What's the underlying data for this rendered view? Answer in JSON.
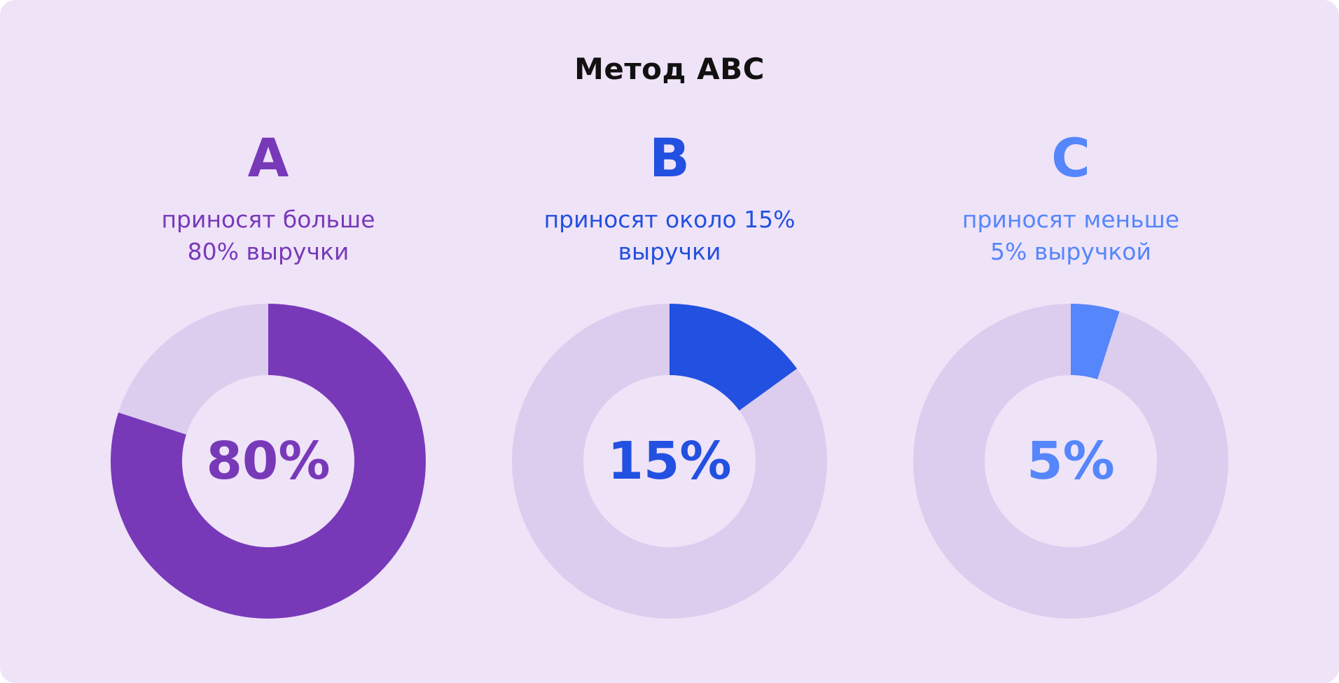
{
  "title": "Метод ABC",
  "colors": {
    "background": "#efe3f8",
    "track": "#dccdee",
    "inner": "#efe3f8"
  },
  "chart_data": [
    {
      "type": "pie",
      "letter": "A",
      "description": [
        "приносят больше",
        "80% выручки"
      ],
      "center_label": "80%",
      "value": 80,
      "max": 100,
      "color": "#7839b9"
    },
    {
      "type": "pie",
      "letter": "B",
      "description": [
        "приносят около 15%",
        "выручки"
      ],
      "center_label": "15%",
      "value": 15,
      "max": 100,
      "color": "#2250e0"
    },
    {
      "type": "pie",
      "letter": "C",
      "description": [
        "приносят меньше",
        "5% выручкой"
      ],
      "center_label": "5%",
      "value": 5,
      "max": 100,
      "color": "#5586fb"
    }
  ]
}
